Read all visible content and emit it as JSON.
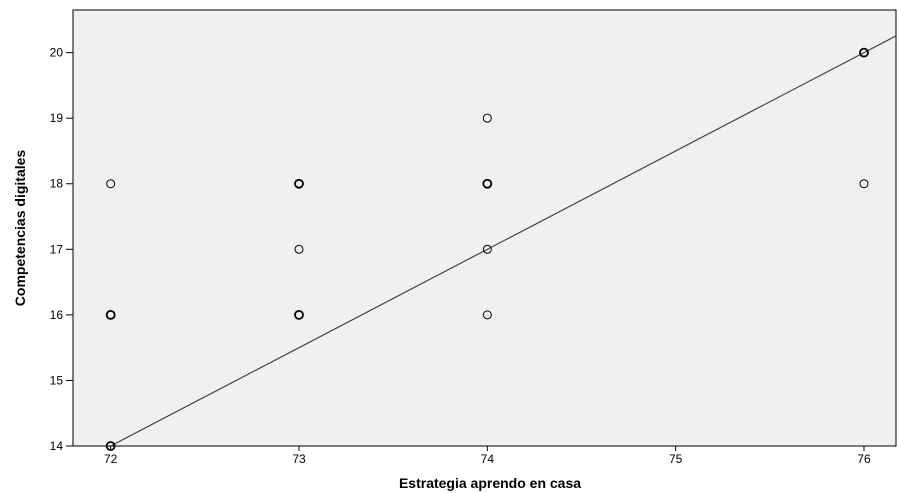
{
  "chart_data": {
    "type": "scatter",
    "title": "",
    "xlabel": "Estrategia aprendo en casa",
    "ylabel": "Competencias digitales",
    "xlim": [
      71.8,
      76.17
    ],
    "ylim": [
      14,
      20.65
    ],
    "x_ticks": [
      "72",
      "73",
      "74",
      "75",
      "76"
    ],
    "y_ticks": [
      "14",
      "15",
      "16",
      "17",
      "18",
      "19",
      "20"
    ],
    "grid": false,
    "colors": {
      "plot_bg": "#f0f0f0",
      "marker": "#000000",
      "line": "#444444"
    },
    "points": [
      {
        "x": 72,
        "y": 18,
        "n": 1
      },
      {
        "x": 72,
        "y": 16,
        "n": 2
      },
      {
        "x": 72,
        "y": 14,
        "n": 2
      },
      {
        "x": 73,
        "y": 18,
        "n": 2
      },
      {
        "x": 73,
        "y": 17,
        "n": 1
      },
      {
        "x": 73,
        "y": 16,
        "n": 2
      },
      {
        "x": 74,
        "y": 19,
        "n": 1
      },
      {
        "x": 74,
        "y": 18,
        "n": 2
      },
      {
        "x": 74,
        "y": 17,
        "n": 1
      },
      {
        "x": 74,
        "y": 16,
        "n": 1
      },
      {
        "x": 76,
        "y": 20,
        "n": 2
      },
      {
        "x": 76,
        "y": 18,
        "n": 1
      }
    ],
    "fit_line": {
      "slope": 1.5,
      "intercept": -94
    }
  }
}
